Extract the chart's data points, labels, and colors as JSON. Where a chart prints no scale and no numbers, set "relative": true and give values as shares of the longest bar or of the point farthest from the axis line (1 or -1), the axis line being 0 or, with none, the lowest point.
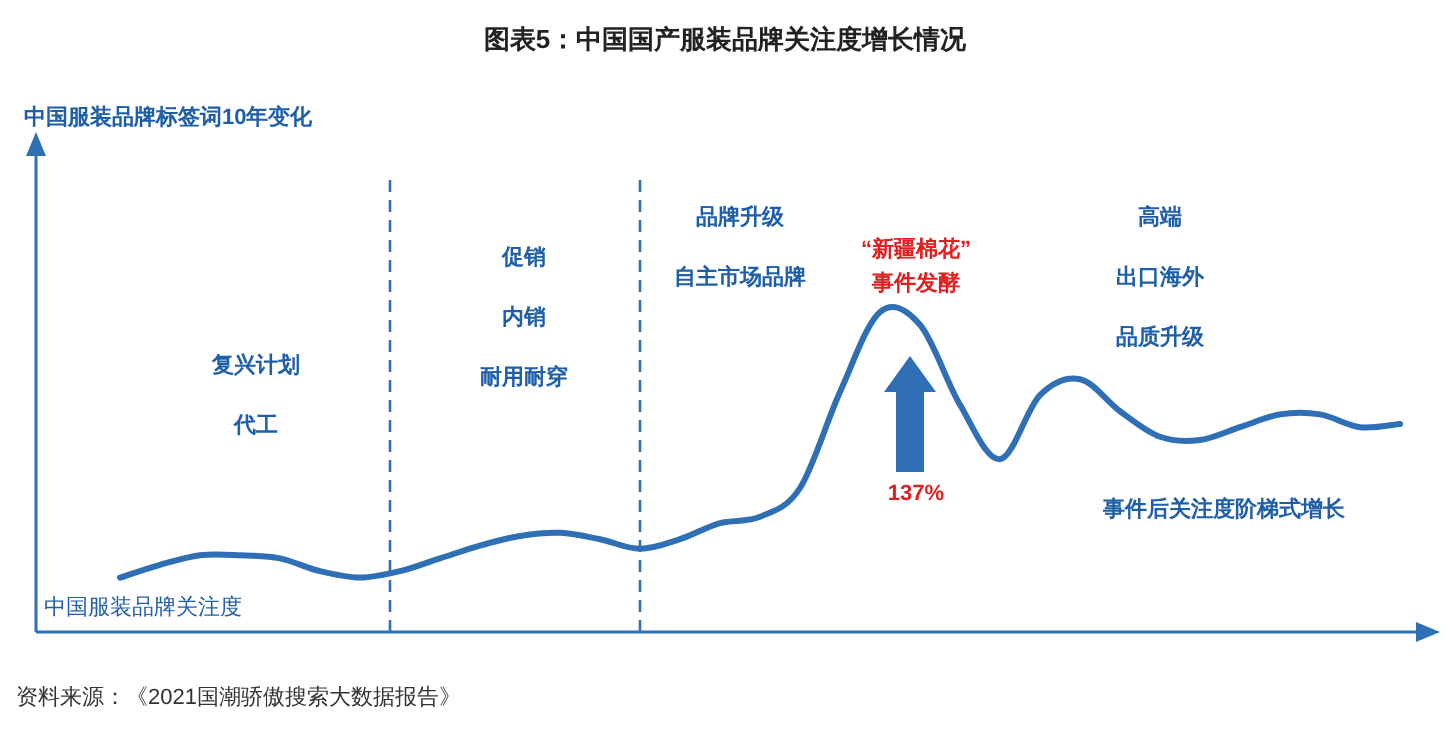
{
  "chart_data": {
    "type": "line",
    "relative": true,
    "title": "图表5：中国国产服装品牌关注度增长情况",
    "categories": [
      null,
      null,
      null,
      null,
      null,
      null,
      null,
      null,
      null,
      null,
      null,
      null,
      null,
      null,
      null,
      null,
      null,
      null,
      null,
      null,
      null,
      null,
      null,
      null,
      null,
      null,
      null,
      null,
      null,
      null,
      null,
      null,
      null
    ],
    "series": [
      {
        "name": "中国服装品牌关注度",
        "color": "#2f6fb5",
        "values": [
          0.17,
          0.21,
          0.24,
          0.24,
          0.23,
          0.19,
          0.17,
          0.19,
          0.23,
          0.27,
          0.3,
          0.31,
          0.29,
          0.26,
          0.29,
          0.34,
          0.36,
          0.45,
          0.75,
          1,
          0.96,
          0.71,
          0.54,
          0.74,
          0.79,
          0.69,
          0.61,
          0.6,
          0.64,
          0.68,
          0.68,
          0.64,
          0.65
        ]
      }
    ],
    "annotations": [
      "中国服装品牌标签词10年变化",
      "复兴计划",
      "代工",
      "促销",
      "内销",
      "耐用耐穿",
      "品牌升级",
      "自主市场品牌",
      "“新疆棉花”",
      "事件发酵",
      "高端",
      "出口海外",
      "品质升级",
      "137%",
      "事件后关注度阶梯式增长",
      "资料来源：《2021国潮骄傲搜索大数据报告》"
    ],
    "line_style": "solid",
    "marker": "none",
    "grid": false
  }
}
